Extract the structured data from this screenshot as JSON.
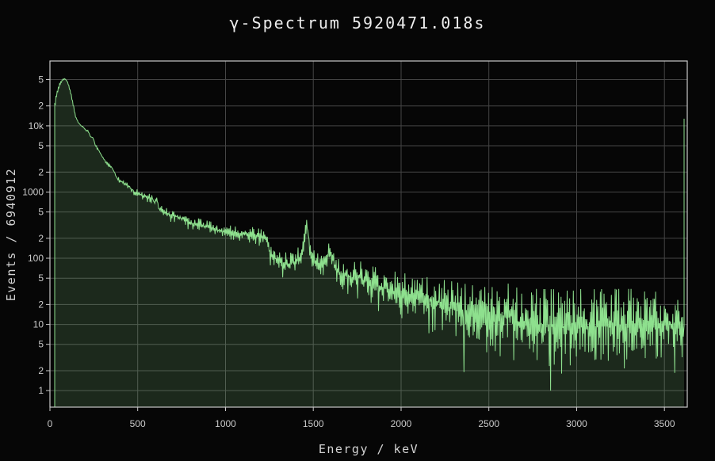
{
  "header": {
    "title": "γ-Spectrum 5920471.018s"
  },
  "chart_data": {
    "type": "area",
    "title": "γ-Spectrum 5920471.018s",
    "xlabel": "Energy / keV",
    "ylabel": "Events / 6940912",
    "measurement_time_label": "5920471.018s",
    "total_events_label": "6940912",
    "x_range": [
      0,
      3630
    ],
    "y_scale": "log",
    "y_log_range": [
      -0.25,
      4.98
    ],
    "x_ticks": [
      0,
      500,
      1000,
      1500,
      2000,
      2500,
      3000,
      3500
    ],
    "y_ticks": [
      {
        "v": 1,
        "label": "1"
      },
      {
        "v": 2,
        "label": "2"
      },
      {
        "v": 5,
        "label": "5"
      },
      {
        "v": 10,
        "label": "10"
      },
      {
        "v": 20,
        "label": "2"
      },
      {
        "v": 50,
        "label": "5"
      },
      {
        "v": 100,
        "label": "100"
      },
      {
        "v": 200,
        "label": "2"
      },
      {
        "v": 500,
        "label": "5"
      },
      {
        "v": 1000,
        "label": "1000"
      },
      {
        "v": 2000,
        "label": "2"
      },
      {
        "v": 5000,
        "label": "5"
      },
      {
        "v": 10000,
        "label": "10k"
      },
      {
        "v": 20000,
        "label": "2"
      },
      {
        "v": 50000,
        "label": "5"
      }
    ],
    "grid": true,
    "legend": false,
    "colors": {
      "line": "#8ee08e",
      "fill": "rgba(142,224,142,0.16)",
      "grid": "#454545",
      "axis": "#c9c9c9",
      "tick_text": "#c9c9c9",
      "title_text": "#ececec",
      "background": "#060606"
    },
    "notable_peaks_kev": [
      242,
      352,
      609,
      1461,
      1588,
      2614
    ],
    "envelope": [
      [
        27,
        21000
      ],
      [
        33,
        27000
      ],
      [
        42,
        34000
      ],
      [
        55,
        43000
      ],
      [
        70,
        49500
      ],
      [
        85,
        51500
      ],
      [
        95,
        47500
      ],
      [
        105,
        41000
      ],
      [
        118,
        30000
      ],
      [
        132,
        20000
      ],
      [
        145,
        13500
      ],
      [
        160,
        11200
      ],
      [
        180,
        9800
      ],
      [
        205,
        8600
      ],
      [
        215,
        8300
      ],
      [
        228,
        7000
      ],
      [
        242,
        6600
      ],
      [
        258,
        5100
      ],
      [
        280,
        4000
      ],
      [
        303,
        3230
      ],
      [
        322,
        2700
      ],
      [
        340,
        2450
      ],
      [
        352,
        2350
      ],
      [
        368,
        1900
      ],
      [
        385,
        1560
      ],
      [
        410,
        1400
      ],
      [
        446,
        1240
      ],
      [
        483,
        1000
      ],
      [
        530,
        890
      ],
      [
        560,
        830
      ],
      [
        578,
        790
      ],
      [
        583,
        830
      ],
      [
        590,
        690
      ],
      [
        598,
        680
      ],
      [
        605,
        860
      ],
      [
        612,
        610
      ],
      [
        622,
        540
      ],
      [
        645,
        505
      ],
      [
        680,
        460
      ],
      [
        709,
        432
      ],
      [
        750,
        395
      ],
      [
        790,
        355
      ],
      [
        858,
        312
      ],
      [
        920,
        280
      ],
      [
        980,
        256
      ],
      [
        1040,
        238
      ],
      [
        1070,
        228
      ],
      [
        1120,
        235
      ],
      [
        1170,
        222
      ],
      [
        1215,
        215
      ],
      [
        1232,
        205
      ],
      [
        1242,
        165
      ],
      [
        1252,
        125
      ],
      [
        1268,
        105
      ],
      [
        1290,
        94
      ],
      [
        1320,
        86
      ],
      [
        1355,
        81
      ],
      [
        1390,
        88
      ],
      [
        1415,
        98
      ],
      [
        1435,
        120
      ],
      [
        1448,
        175
      ],
      [
        1456,
        300
      ],
      [
        1461,
        350
      ],
      [
        1467,
        260
      ],
      [
        1478,
        135
      ],
      [
        1492,
        96
      ],
      [
        1512,
        79
      ],
      [
        1535,
        72
      ],
      [
        1558,
        80
      ],
      [
        1575,
        98
      ],
      [
        1586,
        125
      ],
      [
        1592,
        130
      ],
      [
        1600,
        105
      ],
      [
        1615,
        85
      ],
      [
        1635,
        66
      ],
      [
        1665,
        58
      ],
      [
        1700,
        53
      ],
      [
        1735,
        50
      ],
      [
        1764,
        53
      ],
      [
        1790,
        46
      ],
      [
        1840,
        40
      ],
      [
        1900,
        35
      ],
      [
        1960,
        31
      ],
      [
        2020,
        28
      ],
      [
        2080,
        25
      ],
      [
        2140,
        22.5
      ],
      [
        2204,
        22
      ],
      [
        2260,
        18.5
      ],
      [
        2320,
        16
      ],
      [
        2380,
        14
      ],
      [
        2440,
        12
      ],
      [
        2500,
        11
      ],
      [
        2560,
        12
      ],
      [
        2614,
        15
      ],
      [
        2650,
        11
      ],
      [
        2720,
        9.8
      ],
      [
        2800,
        9.4
      ],
      [
        2900,
        9.2
      ],
      [
        3000,
        9.4
      ],
      [
        3100,
        9.3
      ],
      [
        3200,
        9.5
      ],
      [
        3300,
        9.6
      ],
      [
        3400,
        9.8
      ],
      [
        3500,
        9.8
      ],
      [
        3605,
        10
      ]
    ],
    "forced_dips": [
      [
        2358,
        1.9
      ],
      [
        2852,
        1.0
      ]
    ],
    "overflow_spike": [
      3612,
      12800
    ],
    "noise_factor": 2.2,
    "sample_step_kev": 7,
    "seed": 7
  }
}
